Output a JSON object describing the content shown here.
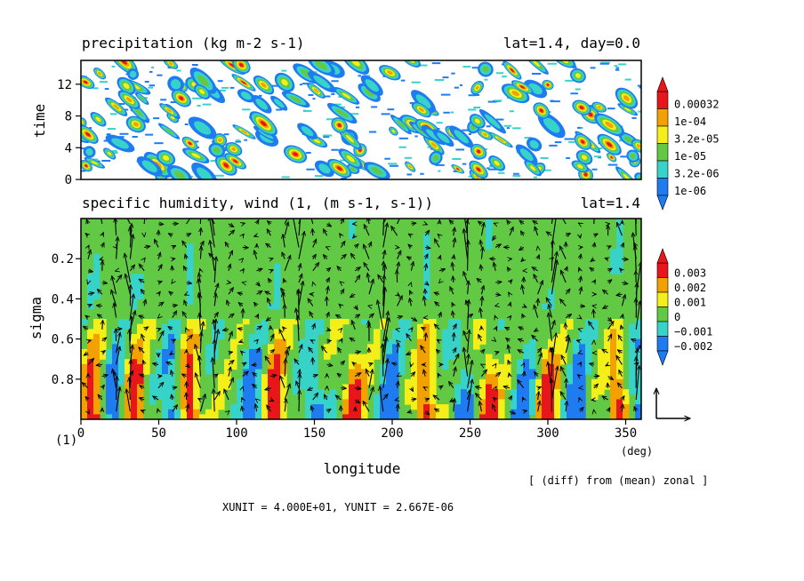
{
  "chart_data": [
    {
      "type": "heatmap",
      "title": "precipitation (kg m-2 s-1)",
      "subtitle": "lat=1.4, day=0.0",
      "ylabel": "time",
      "yticks": [
        "0",
        "4",
        "8",
        "12"
      ],
      "ytick_values": [
        0,
        4,
        8,
        12
      ],
      "ylim": [
        0,
        15
      ],
      "xlim": [
        0,
        360
      ],
      "colorbar": {
        "levels": [
          "0.00032",
          "1e-04",
          "3.2e-05",
          "1e-05",
          "3.2e-06",
          "1e-06"
        ],
        "colors": [
          "#e8161a",
          "#f2a100",
          "#f4ee19",
          "#62c945",
          "#38d3c8",
          "#1e7cf0"
        ],
        "above_color": "#d8161a",
        "below_color": "#1e64e8"
      }
    },
    {
      "type": "heatmap",
      "title": "specific humidity, wind (1, (m s-1, s-1))",
      "subtitle": "lat=1.4",
      "ylabel": "sigma",
      "xlabel": "longitude",
      "xunit": "(deg)",
      "xticks": [
        "0",
        "50",
        "100",
        "150",
        "200",
        "250",
        "300",
        "350"
      ],
      "xtick_values": [
        0,
        50,
        100,
        150,
        200,
        250,
        300,
        350
      ],
      "yticks": [
        "0.2",
        "0.4",
        "0.6",
        "0.8"
      ],
      "ytick_values": [
        0.2,
        0.4,
        0.6,
        0.8
      ],
      "ylim": [
        1.0,
        0.0
      ],
      "xlim": [
        0,
        360
      ],
      "colorbar": {
        "levels": [
          "0.003",
          "0.002",
          "0.001",
          "0",
          "−0.001",
          "−0.002"
        ],
        "colors": [
          "#e8161a",
          "#f2a100",
          "#f4ee19",
          "#62c945",
          "#38d3c8",
          "#1e7cf0"
        ]
      },
      "unit_vector_label": "(1)",
      "note": "[ (diff) from (mean) zonal ]",
      "units_text": "XUNIT = 4.000E+01, YUNIT = 2.667E-06"
    }
  ]
}
